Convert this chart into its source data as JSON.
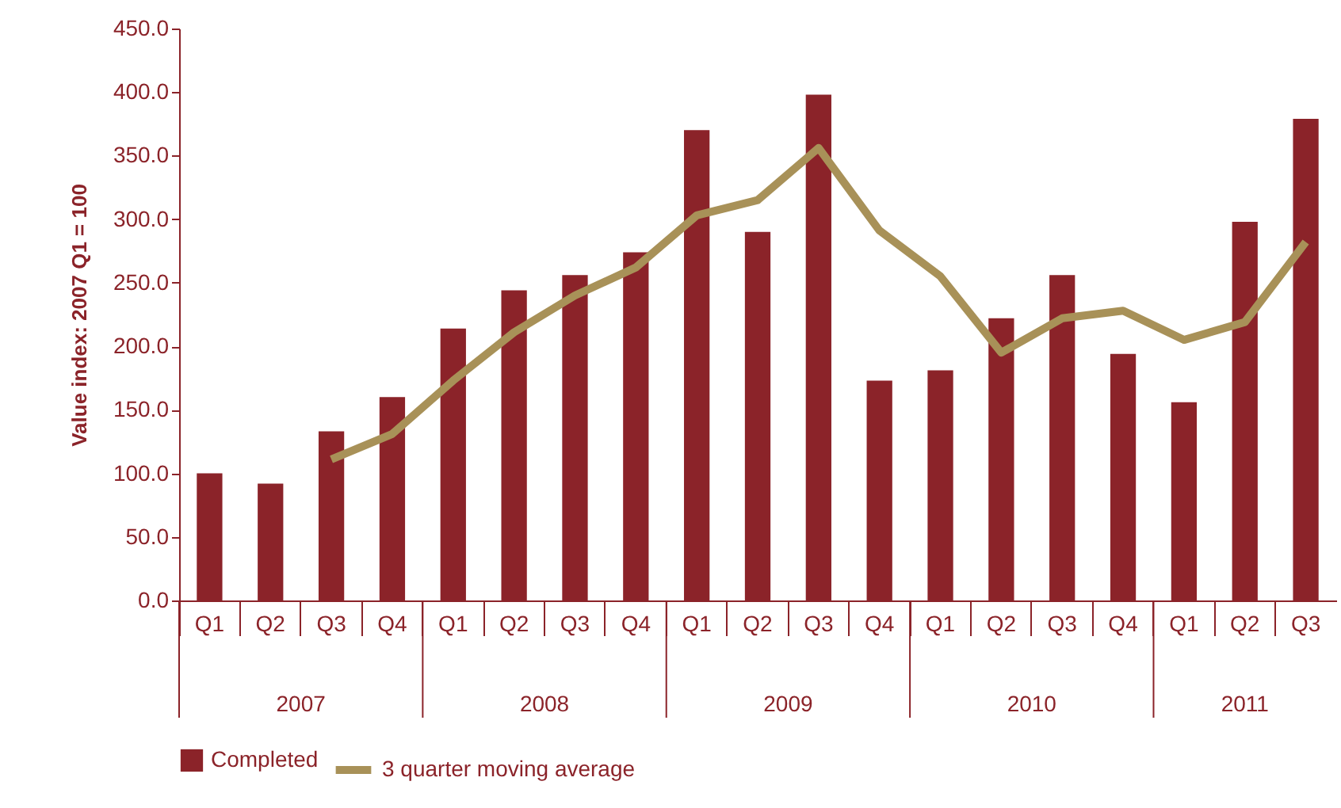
{
  "chart_data": {
    "type": "bar",
    "ylabel": "Value index: 2007 Q1 = 100",
    "categories": [
      "Q1",
      "Q2",
      "Q3",
      "Q4",
      "Q1",
      "Q2",
      "Q3",
      "Q4",
      "Q1",
      "Q2",
      "Q3",
      "Q4",
      "Q1",
      "Q2",
      "Q3",
      "Q4",
      "Q1",
      "Q2",
      "Q3"
    ],
    "annotations": [
      "2007",
      "2008",
      "2009",
      "2010",
      "2011"
    ],
    "series": [
      {
        "name": "Completed",
        "color": "#8b2329",
        "values": [
          100,
          92,
          133,
          160,
          214,
          244,
          256,
          274,
          370,
          290,
          398,
          173,
          181,
          222,
          256,
          194,
          156,
          298,
          379
        ]
      },
      {
        "name": "3 quarter moving average",
        "type": "line",
        "color": "#a89158",
        "values": [
          null,
          null,
          111,
          131,
          173,
          211,
          240,
          262,
          303,
          315,
          356,
          291,
          255,
          195,
          222,
          228,
          205,
          219,
          282
        ]
      }
    ],
    "ylim": [
      0,
      450
    ],
    "yticks": [
      {
        "value": 0,
        "label": "0.0"
      },
      {
        "value": 50,
        "label": "50.0"
      },
      {
        "value": 100,
        "label": "100.0"
      },
      {
        "value": 150,
        "label": "150.0"
      },
      {
        "value": 200,
        "label": "200.0"
      },
      {
        "value": 250,
        "label": "250.0"
      },
      {
        "value": 300,
        "label": "300.0"
      },
      {
        "value": 350,
        "label": "350.0"
      },
      {
        "value": 400,
        "label": "400.0"
      },
      {
        "value": 450,
        "label": "450.0"
      }
    ],
    "grid": false,
    "legend": "bottom"
  }
}
